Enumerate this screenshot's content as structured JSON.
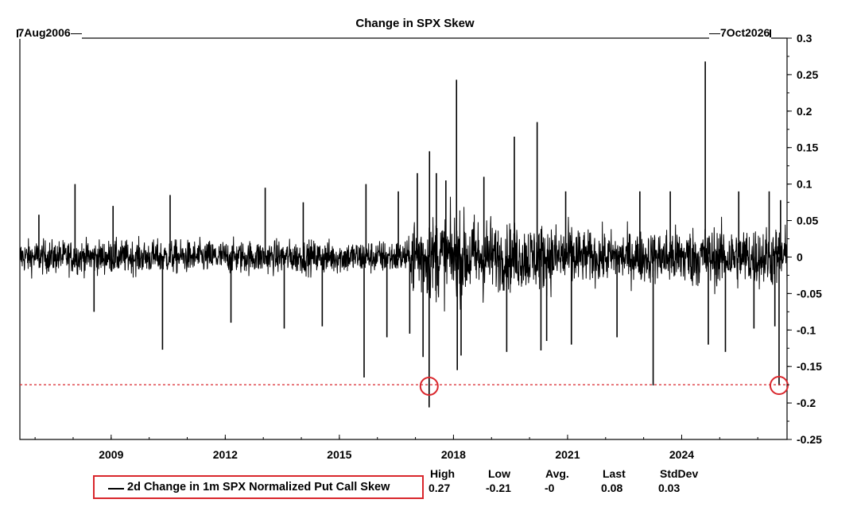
{
  "chart_data": {
    "type": "line",
    "title": "Change in SPX Skew",
    "start_date": "7Aug2006",
    "end_date": "7Oct2026",
    "x_range": [
      2006.6,
      2026.77
    ],
    "ylim": [
      -0.25,
      0.3
    ],
    "y_ticks": [
      0.3,
      0.25,
      0.2,
      0.15,
      0.1,
      0.05,
      0,
      -0.05,
      -0.1,
      -0.15,
      -0.2,
      -0.25
    ],
    "y_tick_labels": [
      "0.3",
      "0.25",
      "0.2",
      "0.15",
      "0.1",
      "0.05",
      "0",
      "-0.05",
      "-0.1",
      "-0.15",
      "-0.2",
      "-0.25"
    ],
    "x_ticks": [
      2009,
      2012,
      2015,
      2018,
      2021,
      2024
    ],
    "x_tick_labels": [
      "2009",
      "2012",
      "2015",
      "2018",
      "2021",
      "2024"
    ],
    "reference_line": {
      "y": -0.175,
      "color": "#d9262c",
      "style": "dashed"
    },
    "highlight_circles": [
      {
        "x": 2017.36,
        "y": -0.177
      },
      {
        "x": 2026.56,
        "y": -0.176
      }
    ],
    "series": [
      {
        "name": "2d Change in 1m SPX Normalized Put Call Skew",
        "color": "#000000",
        "spikes": [
          {
            "x": 2007.1,
            "y": 0.058
          },
          {
            "x": 2008.05,
            "y": 0.1
          },
          {
            "x": 2008.55,
            "y": -0.075
          },
          {
            "x": 2009.05,
            "y": 0.07
          },
          {
            "x": 2010.35,
            "y": -0.127
          },
          {
            "x": 2010.55,
            "y": 0.085
          },
          {
            "x": 2012.15,
            "y": -0.09
          },
          {
            "x": 2013.05,
            "y": 0.095
          },
          {
            "x": 2013.55,
            "y": -0.098
          },
          {
            "x": 2014.05,
            "y": 0.075
          },
          {
            "x": 2014.55,
            "y": -0.095
          },
          {
            "x": 2015.65,
            "y": -0.165
          },
          {
            "x": 2015.7,
            "y": 0.1
          },
          {
            "x": 2016.25,
            "y": -0.11
          },
          {
            "x": 2016.55,
            "y": 0.09
          },
          {
            "x": 2016.85,
            "y": -0.105
          },
          {
            "x": 2017.05,
            "y": 0.115
          },
          {
            "x": 2017.2,
            "y": -0.137
          },
          {
            "x": 2017.36,
            "y": -0.206
          },
          {
            "x": 2017.37,
            "y": 0.145
          },
          {
            "x": 2017.55,
            "y": 0.115
          },
          {
            "x": 2017.8,
            "y": 0.105
          },
          {
            "x": 2018.08,
            "y": 0.243
          },
          {
            "x": 2018.1,
            "y": -0.155
          },
          {
            "x": 2018.2,
            "y": -0.135
          },
          {
            "x": 2018.8,
            "y": 0.11
          },
          {
            "x": 2019.4,
            "y": -0.13
          },
          {
            "x": 2019.6,
            "y": 0.165
          },
          {
            "x": 2020.2,
            "y": 0.185
          },
          {
            "x": 2020.3,
            "y": -0.128
          },
          {
            "x": 2020.45,
            "y": -0.115
          },
          {
            "x": 2020.95,
            "y": 0.09
          },
          {
            "x": 2021.1,
            "y": -0.12
          },
          {
            "x": 2022.3,
            "y": -0.11
          },
          {
            "x": 2022.9,
            "y": 0.09
          },
          {
            "x": 2023.25,
            "y": -0.176
          },
          {
            "x": 2023.7,
            "y": 0.09
          },
          {
            "x": 2024.62,
            "y": 0.268
          },
          {
            "x": 2024.7,
            "y": -0.12
          },
          {
            "x": 2025.15,
            "y": -0.13
          },
          {
            "x": 2025.5,
            "y": 0.09
          },
          {
            "x": 2025.9,
            "y": -0.098
          },
          {
            "x": 2026.3,
            "y": 0.09
          },
          {
            "x": 2026.45,
            "y": -0.095
          },
          {
            "x": 2026.56,
            "y": -0.176
          },
          {
            "x": 2026.6,
            "y": 0.078
          }
        ]
      }
    ]
  },
  "legend": {
    "label": "2d Change in 1m SPX Normalized Put Call Skew",
    "stats": [
      {
        "header": "High",
        "value": "0.27"
      },
      {
        "header": "Low",
        "value": "-0.21"
      },
      {
        "header": "Avg.",
        "value": "-0"
      },
      {
        "header": "Last",
        "value": "0.08"
      },
      {
        "header": "StdDev",
        "value": "0.03"
      }
    ]
  }
}
